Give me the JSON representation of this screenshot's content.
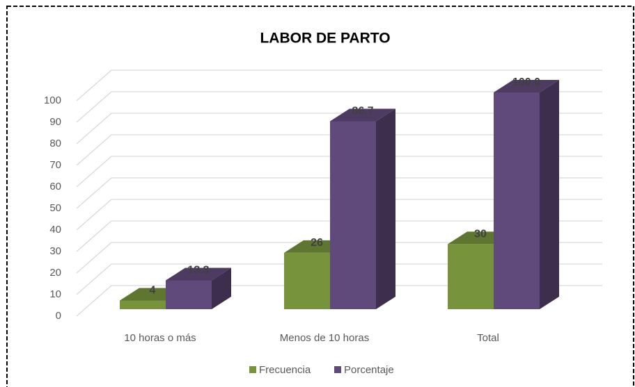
{
  "chart_data": {
    "type": "bar3d",
    "title": "LABOR DE PARTO",
    "categories": [
      "10 horas o más",
      "Menos de 10 horas",
      "Total"
    ],
    "series": [
      {
        "name": "Frecuencia",
        "color": "#77933c",
        "values": [
          4,
          26,
          30
        ]
      },
      {
        "name": "Porcentaje",
        "color": "#604a7b",
        "values": [
          13.3,
          86.7,
          100
        ],
        "value_labels": [
          "13.3",
          "86.7",
          "100.0"
        ]
      }
    ],
    "ylim": [
      0,
      100
    ],
    "yticks": [
      0,
      10,
      20,
      30,
      40,
      50,
      60,
      70,
      80,
      90,
      100
    ],
    "grid": true,
    "legend": "bottom"
  }
}
